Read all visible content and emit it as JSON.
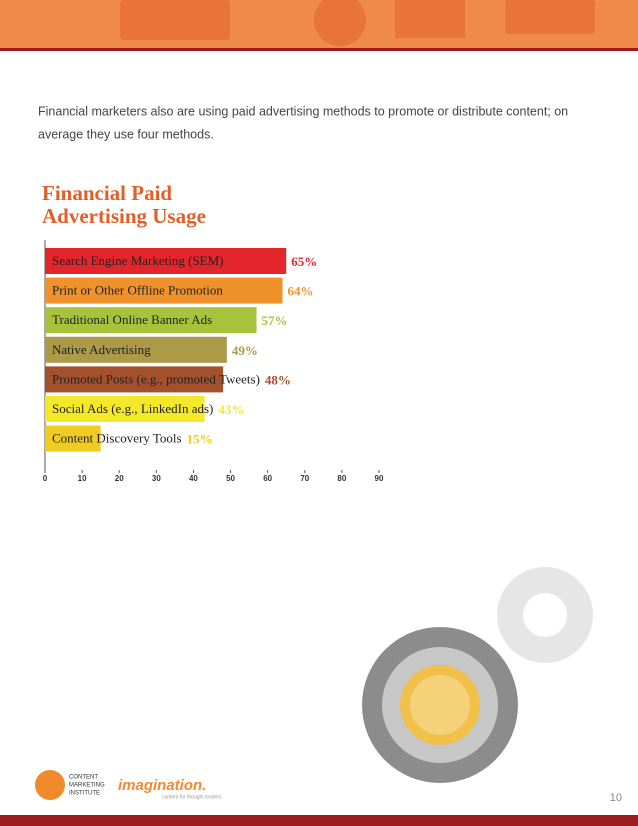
{
  "body_text": [
    "Financial marketers also are using paid advertising methods to promote or distribute content; on",
    "average they use four methods."
  ],
  "chart_data": {
    "type": "bar",
    "orientation": "horizontal",
    "title_lines": [
      "Financial Paid",
      "Advertising Usage"
    ],
    "categories": [
      "Search Engine Marketing (SEM)",
      "Print or Other Offline Promotion",
      "Traditional Online Banner Ads",
      "Native Advertising",
      "Promoted Posts (e.g., promoted Tweets)",
      "Social Ads (e.g., LinkedIn ads)",
      "Content Discovery Tools"
    ],
    "values": [
      65,
      64,
      57,
      49,
      48,
      43,
      15
    ],
    "value_labels": [
      "65%",
      "64%",
      "57%",
      "49%",
      "48%",
      "43%",
      "15%"
    ],
    "colors": [
      "#e2262c",
      "#f0922b",
      "#a8c23b",
      "#ad9a48",
      "#a3512c",
      "#f5e829",
      "#f0cc22"
    ],
    "xlim": [
      0,
      90
    ],
    "xticks": [
      0,
      10,
      20,
      30,
      40,
      50,
      60,
      70,
      80,
      90
    ]
  },
  "footer": {
    "logo_lines": [
      "CONTENT",
      "MARKETING",
      "INSTITUTE"
    ],
    "brand": "imagination.",
    "tagline": "content for thought leaders",
    "page_number": "10"
  }
}
